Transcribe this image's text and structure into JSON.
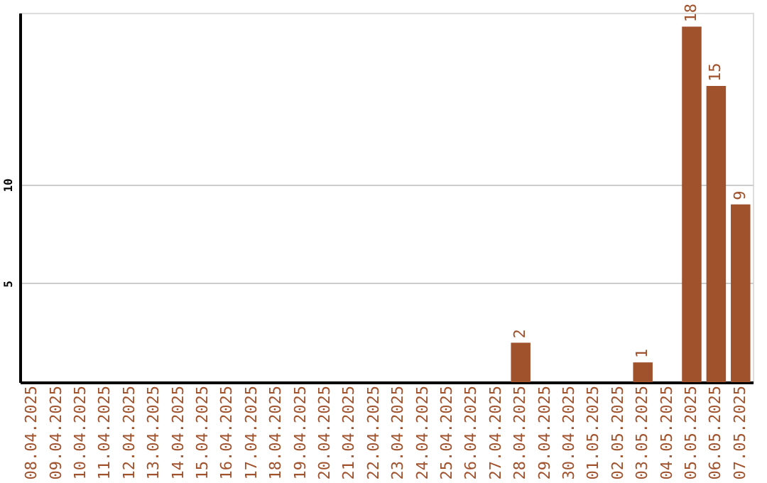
{
  "chart_data": {
    "type": "bar",
    "categories": [
      "08.04.2025",
      "09.04.2025",
      "10.04.2025",
      "11.04.2025",
      "12.04.2025",
      "13.04.2025",
      "14.04.2025",
      "15.04.2025",
      "16.04.2025",
      "17.04.2025",
      "18.04.2025",
      "19.04.2025",
      "20.04.2025",
      "21.04.2025",
      "22.04.2025",
      "23.04.2025",
      "24.04.2025",
      "25.04.2025",
      "26.04.2025",
      "27.04.2025",
      "28.04.2025",
      "29.04.2025",
      "30.04.2025",
      "01.05.2025",
      "02.05.2025",
      "03.05.2025",
      "04.05.2025",
      "05.05.2025",
      "06.05.2025",
      "07.05.2025"
    ],
    "values": [
      0,
      0,
      0,
      0,
      0,
      0,
      0,
      0,
      0,
      0,
      0,
      0,
      0,
      0,
      0,
      0,
      0,
      0,
      0,
      0,
      2,
      0,
      0,
      0,
      0,
      1,
      0,
      18,
      15,
      9
    ],
    "value_labels": [
      null,
      null,
      null,
      null,
      null,
      null,
      null,
      null,
      null,
      null,
      null,
      null,
      null,
      null,
      null,
      null,
      null,
      null,
      null,
      null,
      "2",
      null,
      null,
      null,
      null,
      "1",
      null,
      "18",
      "15",
      "9"
    ],
    "color": "#a0522d",
    "ylim": [
      0,
      18.7
    ],
    "yticks": [
      5,
      10
    ],
    "grid": "y"
  }
}
